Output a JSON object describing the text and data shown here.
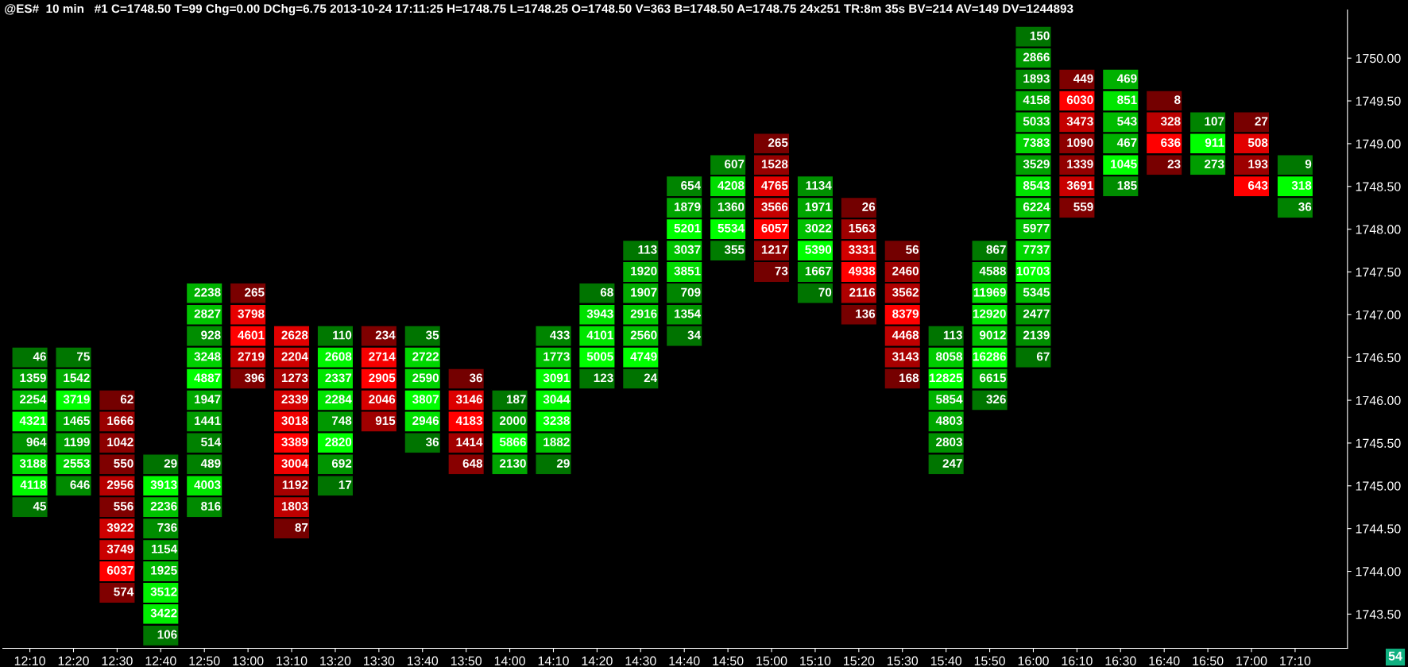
{
  "chart_data": {
    "type": "heatmap",
    "title": "@ES#  10 min   #1 C=1748.50 T=99 Chg=0.00 DChg=6.75 2013-10-24 17:11:25 H=1748.75 L=1748.25 O=1748.50 V=363 B=1748.50 A=1748.75 24x251 TR:8m 35s BV=214 AV=149 DV=1244893",
    "categories": [
      "12:10",
      "12:20",
      "12:30",
      "12:40",
      "12:50",
      "13:00",
      "13:10",
      "13:20",
      "13:30",
      "13:40",
      "13:50",
      "14:00",
      "14:10",
      "14:20",
      "14:30",
      "14:40",
      "14:50",
      "15:00",
      "15:10",
      "15:20",
      "15:30",
      "15:40",
      "15:50",
      "16:00",
      "16:10",
      "16:30",
      "16:40",
      "16:50",
      "17:00",
      "17:10"
    ],
    "y_categories": [
      null,
      "1750.00",
      null,
      "1749.50",
      null,
      "1749.00",
      null,
      "1748.50",
      null,
      "1748.00",
      null,
      "1747.50",
      null,
      "1747.00",
      null,
      "1746.50",
      null,
      "1746.00",
      null,
      "1745.50",
      null,
      "1745.00",
      null,
      "1744.50",
      null,
      "1744.00",
      null,
      "1743.50",
      null
    ],
    "colors": [
      "#00ff00",
      "#00ff00",
      "#ff0000",
      "#00ff00",
      "#00ff00",
      "#ff0000",
      "#ff0000",
      "#00ff00",
      "#ff0000",
      "#00ff00",
      "#ff0000",
      "#00ff00",
      "#00ff00",
      "#00ff00",
      "#00ff00",
      "#00ff00",
      "#00ff00",
      "#ff0000",
      "#00ff00",
      "#ff0000",
      "#ff0000",
      "#00ff00",
      "#00ff00",
      "#00ff00",
      "#ff0000",
      "#00ff00",
      "#ff0000",
      "#00ff00",
      "#ff0000",
      "#00ff00"
    ],
    "data_labels": true,
    "annotations": [
      "54"
    ],
    "cells": [
      [
        null,
        null,
        null,
        null,
        null,
        null,
        null,
        null,
        null,
        null,
        null,
        null,
        null,
        null,
        null,
        null,
        null,
        null,
        null,
        null,
        null,
        null,
        null,
        150,
        null,
        null,
        null,
        null,
        null,
        null
      ],
      [
        null,
        null,
        null,
        null,
        null,
        null,
        null,
        null,
        null,
        null,
        null,
        null,
        null,
        null,
        null,
        null,
        null,
        null,
        null,
        null,
        null,
        null,
        null,
        2866,
        null,
        null,
        null,
        null,
        null,
        null
      ],
      [
        null,
        null,
        null,
        null,
        null,
        null,
        null,
        null,
        null,
        null,
        null,
        null,
        null,
        null,
        null,
        null,
        null,
        null,
        null,
        null,
        null,
        null,
        null,
        1893,
        449,
        469,
        null,
        null,
        null,
        null
      ],
      [
        null,
        null,
        null,
        null,
        null,
        null,
        null,
        null,
        null,
        null,
        null,
        null,
        null,
        null,
        null,
        null,
        null,
        null,
        null,
        null,
        null,
        null,
        null,
        4158,
        6030,
        851,
        8,
        null,
        null,
        null
      ],
      [
        null,
        null,
        null,
        null,
        null,
        null,
        null,
        null,
        null,
        null,
        null,
        null,
        null,
        null,
        null,
        null,
        null,
        null,
        null,
        null,
        null,
        null,
        null,
        5033,
        3473,
        543,
        328,
        107,
        27,
        null
      ],
      [
        null,
        null,
        null,
        null,
        null,
        null,
        null,
        null,
        null,
        null,
        null,
        null,
        null,
        null,
        null,
        null,
        null,
        265,
        null,
        null,
        null,
        null,
        null,
        7383,
        1090,
        467,
        636,
        911,
        508,
        null
      ],
      [
        null,
        null,
        null,
        null,
        null,
        null,
        null,
        null,
        null,
        null,
        null,
        null,
        null,
        null,
        null,
        null,
        607,
        1528,
        null,
        null,
        null,
        null,
        null,
        3529,
        1339,
        1045,
        23,
        273,
        193,
        9
      ],
      [
        null,
        null,
        null,
        null,
        null,
        null,
        null,
        null,
        null,
        null,
        null,
        null,
        null,
        null,
        null,
        654,
        4208,
        4765,
        1134,
        null,
        null,
        null,
        null,
        8543,
        3691,
        185,
        null,
        null,
        643,
        318
      ],
      [
        null,
        null,
        null,
        null,
        null,
        null,
        null,
        null,
        null,
        null,
        null,
        null,
        null,
        null,
        null,
        1879,
        1360,
        3566,
        1971,
        26,
        null,
        null,
        null,
        6224,
        559,
        null,
        null,
        null,
        null,
        36
      ],
      [
        null,
        null,
        null,
        null,
        null,
        null,
        null,
        null,
        null,
        null,
        null,
        null,
        null,
        null,
        null,
        5201,
        5534,
        6057,
        3022,
        1563,
        null,
        null,
        null,
        5977,
        null,
        null,
        null,
        null,
        null,
        null
      ],
      [
        null,
        null,
        null,
        null,
        null,
        null,
        null,
        null,
        null,
        null,
        null,
        null,
        null,
        null,
        113,
        3037,
        355,
        1217,
        5390,
        3331,
        56,
        null,
        867,
        7737,
        null,
        null,
        null,
        null,
        null,
        null
      ],
      [
        null,
        null,
        null,
        null,
        null,
        null,
        null,
        null,
        null,
        null,
        null,
        null,
        null,
        null,
        1920,
        3851,
        null,
        73,
        1667,
        4938,
        2460,
        null,
        4588,
        10703,
        null,
        null,
        null,
        null,
        null,
        null
      ],
      [
        null,
        null,
        null,
        null,
        2238,
        265,
        null,
        null,
        null,
        null,
        null,
        null,
        null,
        68,
        1907,
        709,
        null,
        null,
        70,
        2116,
        3562,
        null,
        11969,
        5345,
        null,
        null,
        null,
        null,
        null,
        null
      ],
      [
        null,
        null,
        null,
        null,
        2827,
        3798,
        null,
        null,
        null,
        null,
        null,
        null,
        null,
        3943,
        2916,
        1354,
        null,
        null,
        null,
        136,
        8379,
        null,
        12920,
        2477,
        null,
        null,
        null,
        null,
        null,
        null
      ],
      [
        null,
        null,
        null,
        null,
        928,
        4601,
        2628,
        110,
        234,
        35,
        null,
        null,
        433,
        4101,
        2560,
        34,
        null,
        null,
        null,
        null,
        4468,
        113,
        9012,
        2139,
        null,
        null,
        null,
        null,
        null,
        null
      ],
      [
        46,
        75,
        null,
        null,
        3248,
        2719,
        2204,
        2608,
        2714,
        2722,
        null,
        null,
        1773,
        5005,
        4749,
        null,
        null,
        null,
        null,
        null,
        3143,
        8058,
        16286,
        67,
        null,
        null,
        null,
        null,
        null,
        null
      ],
      [
        1359,
        1542,
        null,
        null,
        4887,
        396,
        1273,
        2337,
        2905,
        2590,
        36,
        null,
        3091,
        123,
        24,
        null,
        null,
        null,
        null,
        null,
        168,
        12825,
        6615,
        null,
        null,
        null,
        null,
        null,
        null,
        null
      ],
      [
        2254,
        3719,
        62,
        null,
        1947,
        null,
        2339,
        2284,
        2046,
        3807,
        3146,
        187,
        3044,
        null,
        null,
        null,
        null,
        null,
        null,
        null,
        null,
        5854,
        326,
        null,
        null,
        null,
        null,
        null,
        null,
        null
      ],
      [
        4321,
        1465,
        1666,
        null,
        1441,
        null,
        3018,
        748,
        915,
        2946,
        4183,
        2000,
        3238,
        null,
        null,
        null,
        null,
        null,
        null,
        null,
        null,
        4803,
        null,
        null,
        null,
        null,
        null,
        null,
        null,
        null
      ],
      [
        964,
        1199,
        1042,
        null,
        514,
        null,
        3389,
        2820,
        null,
        36,
        1414,
        5866,
        1882,
        null,
        null,
        null,
        null,
        null,
        null,
        null,
        null,
        2803,
        null,
        null,
        null,
        null,
        null,
        null,
        null,
        null
      ],
      [
        3188,
        2553,
        550,
        29,
        489,
        null,
        3004,
        692,
        null,
        null,
        648,
        2130,
        29,
        null,
        null,
        null,
        null,
        null,
        null,
        null,
        null,
        247,
        null,
        null,
        null,
        null,
        null,
        null,
        null,
        null
      ],
      [
        4118,
        646,
        2956,
        3913,
        4003,
        null,
        1192,
        17,
        null,
        null,
        null,
        null,
        null,
        null,
        null,
        null,
        null,
        null,
        null,
        null,
        null,
        null,
        null,
        null,
        null,
        null,
        null,
        null,
        null,
        null
      ],
      [
        45,
        null,
        556,
        2236,
        816,
        null,
        1803,
        null,
        null,
        null,
        null,
        null,
        null,
        null,
        null,
        null,
        null,
        null,
        null,
        null,
        null,
        null,
        null,
        null,
        null,
        null,
        null,
        null,
        null,
        null
      ],
      [
        null,
        null,
        3922,
        736,
        null,
        null,
        87,
        null,
        null,
        null,
        null,
        null,
        null,
        null,
        null,
        null,
        null,
        null,
        null,
        null,
        null,
        null,
        null,
        null,
        null,
        null,
        null,
        null,
        null,
        null
      ],
      [
        null,
        null,
        3749,
        1154,
        null,
        null,
        null,
        null,
        null,
        null,
        null,
        null,
        null,
        null,
        null,
        null,
        null,
        null,
        null,
        null,
        null,
        null,
        null,
        null,
        null,
        null,
        null,
        null,
        null,
        null
      ],
      [
        null,
        null,
        6037,
        1925,
        null,
        null,
        null,
        null,
        null,
        null,
        null,
        null,
        null,
        null,
        null,
        null,
        null,
        null,
        null,
        null,
        null,
        null,
        null,
        null,
        null,
        null,
        null,
        null,
        null,
        null
      ],
      [
        null,
        null,
        574,
        3512,
        null,
        null,
        null,
        null,
        null,
        null,
        null,
        null,
        null,
        null,
        null,
        null,
        null,
        null,
        null,
        null,
        null,
        null,
        null,
        null,
        null,
        null,
        null,
        null,
        null,
        null
      ],
      [
        null,
        null,
        null,
        3422,
        null,
        null,
        null,
        null,
        null,
        null,
        null,
        null,
        null,
        null,
        null,
        null,
        null,
        null,
        null,
        null,
        null,
        null,
        null,
        null,
        null,
        null,
        null,
        null,
        null,
        null
      ],
      [
        null,
        null,
        null,
        106,
        null,
        null,
        null,
        null,
        null,
        null,
        null,
        null,
        null,
        null,
        null,
        null,
        null,
        null,
        null,
        null,
        null,
        null,
        null,
        null,
        null,
        null,
        null,
        null,
        null,
        null
      ]
    ]
  }
}
